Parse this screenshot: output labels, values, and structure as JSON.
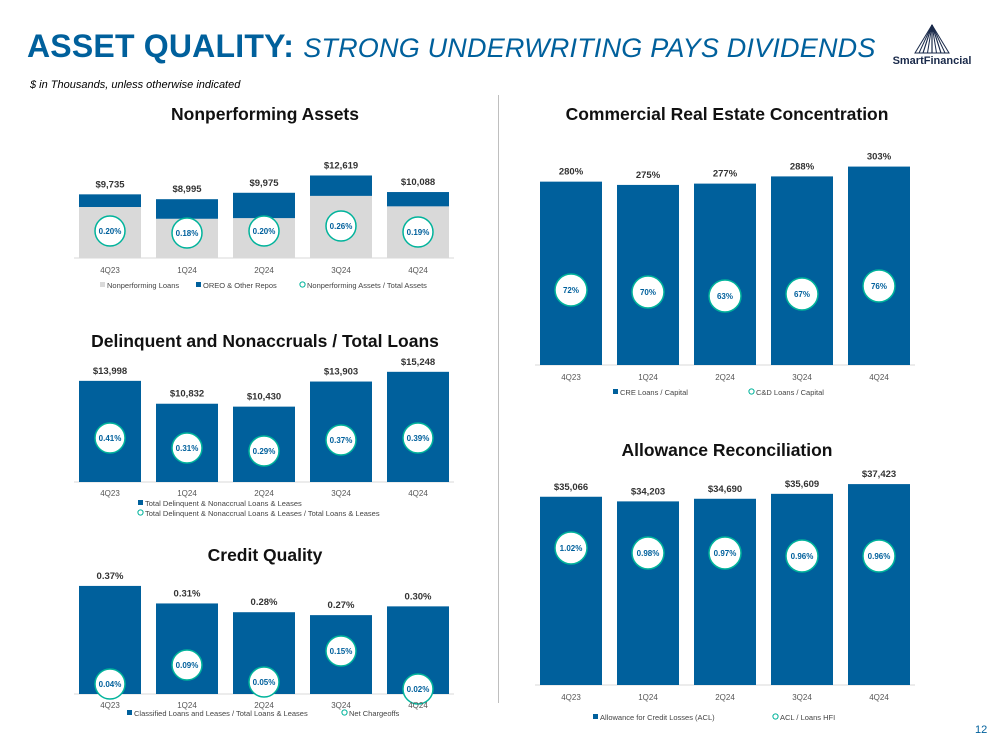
{
  "header": {
    "title_prefix": "Asset Quality:",
    "title_suffix": "Strong Underwriting Pays Dividends",
    "title_prefix_display": "ASSET QUALITY:",
    "title_suffix_display": "STRONG UNDERWRITING PAYS DIVIDENDS",
    "subtitle": "$ in Thousands, unless otherwise indicated",
    "logo_text": "SmartFinancial",
    "logo_icon": "mountain-logo-icon"
  },
  "page_number": "12",
  "colors": {
    "brand_blue": "#00609c",
    "light_gray": "#d9d9d9",
    "circle_border": "#00b39b",
    "label_text": "#333333"
  },
  "chart_data": [
    {
      "id": "nonperforming-assets",
      "title": "Nonperforming Assets",
      "type": "bar",
      "stacked": true,
      "categories": [
        "4Q23",
        "1Q24",
        "2Q24",
        "3Q24",
        "4Q24"
      ],
      "series": [
        {
          "name": "Nonperforming Loans",
          "values": [
            7800,
            6000,
            6100,
            9500,
            7900
          ],
          "color": "#d9d9d9"
        },
        {
          "name": "OREO & Other Repos",
          "values": [
            1935,
            2995,
            3875,
            3119,
            2188
          ],
          "color": "#00609c"
        }
      ],
      "total_labels": [
        "$9,735",
        "$8,995",
        "$9,975",
        "$12,619",
        "$10,088"
      ],
      "circle_series": {
        "name": "Nonperforming Assets / Total Assets",
        "labels": [
          "0.20%",
          "0.18%",
          "0.20%",
          "0.26%",
          "0.19%"
        ]
      },
      "legend": [
        "Nonperforming Loans",
        "OREO & Other Repos",
        "Nonperforming Assets / Total Assets"
      ],
      "ylim": [
        0,
        13000
      ]
    },
    {
      "id": "delinquent-nonaccruals",
      "title": "Delinquent and Nonaccruals / Total Loans",
      "type": "bar",
      "categories": [
        "4Q23",
        "1Q24",
        "2Q24",
        "3Q24",
        "4Q24"
      ],
      "series": [
        {
          "name": "Total Delinquent & Nonaccrual Loans & Leases",
          "values": [
            13998,
            10832,
            10430,
            13903,
            15248
          ],
          "color": "#00609c"
        }
      ],
      "value_labels": [
        "$13,998",
        "$10,832",
        "$10,430",
        "$13,903",
        "$15,248"
      ],
      "circle_series": {
        "name": "Total Delinquent & Nonaccrual Loans & Leases / Total Loans & Leases",
        "labels": [
          "0.41%",
          "0.31%",
          "0.29%",
          "0.37%",
          "0.39%"
        ]
      },
      "legend": [
        "Total Delinquent & Nonaccrual Loans & Leases",
        "Total Delinquent & Nonaccrual Loans & Leases / Total Loans & Leases"
      ],
      "ylim": [
        0,
        15500
      ]
    },
    {
      "id": "credit-quality",
      "title": "Credit Quality",
      "type": "bar",
      "categories": [
        "4Q23",
        "1Q24",
        "2Q24",
        "3Q24",
        "4Q24"
      ],
      "series": [
        {
          "name": "Classified Loans and Leases / Total Loans & Leases",
          "values": [
            0.37,
            0.31,
            0.28,
            0.27,
            0.3
          ],
          "color": "#00609c"
        },
        {
          "name": "Net Chargeoffs",
          "values": [
            0.04,
            0.09,
            0.05,
            0.15,
            0.02
          ]
        }
      ],
      "value_labels": [
        "0.37%",
        "0.31%",
        "0.28%",
        "0.27%",
        "0.30%"
      ],
      "circle_series": {
        "name": "Net Chargeoffs",
        "labels": [
          "0.04%",
          "0.09%",
          "0.05%",
          "0.15%",
          "0.02%"
        ]
      },
      "legend": [
        "Classified Loans and Leases / Total Loans & Leases",
        "Net Chargeoffs"
      ],
      "ylim": [
        0,
        0.38
      ]
    },
    {
      "id": "cre-concentration",
      "title": "Commercial Real Estate Concentration",
      "type": "bar",
      "categories": [
        "4Q23",
        "1Q24",
        "2Q24",
        "3Q24",
        "4Q24"
      ],
      "series": [
        {
          "name": "CRE Loans / Capital",
          "values": [
            280,
            275,
            277,
            288,
            303
          ],
          "color": "#00609c"
        },
        {
          "name": "C&D Loans / Capital",
          "values": [
            72,
            70,
            63,
            67,
            76
          ]
        }
      ],
      "value_labels": [
        "280%",
        "275%",
        "277%",
        "288%",
        "303%"
      ],
      "circle_series": {
        "name": "C&D Loans / Capital",
        "labels": [
          "72%",
          "70%",
          "63%",
          "67%",
          "76%"
        ]
      },
      "legend": [
        "CRE Loans / Capital",
        "C&D Loans / Capital"
      ],
      "ylim": [
        0,
        310
      ]
    },
    {
      "id": "allowance-reconciliation",
      "title": "Allowance Reconciliation",
      "type": "bar",
      "categories": [
        "4Q23",
        "1Q24",
        "2Q24",
        "3Q24",
        "4Q24"
      ],
      "series": [
        {
          "name": "Allowance for Credit Losses (ACL)",
          "values": [
            35066,
            34203,
            34690,
            35609,
            37423
          ],
          "color": "#00609c"
        },
        {
          "name": "ACL / Loans HFI",
          "values": [
            1.02,
            0.98,
            0.97,
            0.96,
            0.96
          ]
        }
      ],
      "value_labels": [
        "$35,066",
        "$34,203",
        "$34,690",
        "$35,609",
        "$37,423"
      ],
      "circle_series": {
        "name": "ACL / Loans HFI",
        "labels": [
          "1.02%",
          "0.98%",
          "0.97%",
          "0.96%",
          "0.96%"
        ]
      },
      "legend": [
        "Allowance for Credit Losses (ACL)",
        "ACL / Loans HFI"
      ],
      "ylim": [
        0,
        38000
      ]
    }
  ]
}
